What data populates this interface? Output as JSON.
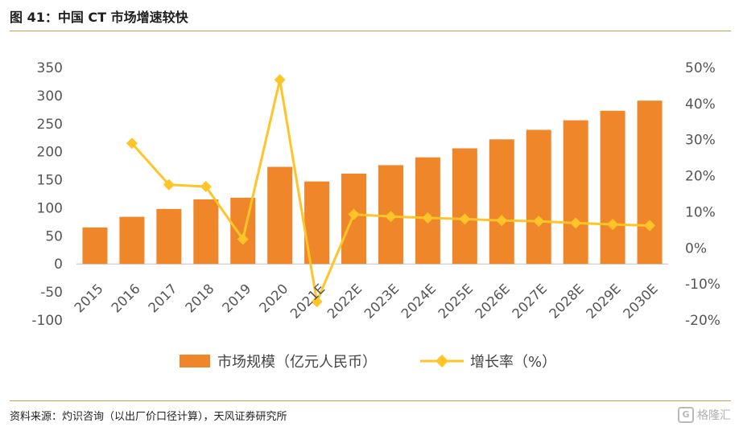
{
  "header": {
    "title": "图 41：中国 CT 市场增速较快"
  },
  "footer": {
    "source": "资料来源：灼识咨询（以出厂价口径计算），天风证券研究所",
    "watermark": "格隆汇"
  },
  "colors": {
    "bar": "#F0862A",
    "line": "#FFC428",
    "rule": "#C7A15A"
  },
  "chart_data": {
    "type": "bar",
    "categories": [
      "2015",
      "2016",
      "2017",
      "2018",
      "2019",
      "2020",
      "2021E",
      "2022E",
      "2023E",
      "2024E",
      "2025E",
      "2026E",
      "2027E",
      "2028E",
      "2029E",
      "2030E"
    ],
    "series": [
      {
        "name": "市场规模（亿元人民币）",
        "type": "bar",
        "axis": "left",
        "values": [
          65,
          84,
          98,
          115,
          118,
          173,
          147,
          161,
          176,
          190,
          206,
          222,
          239,
          256,
          273,
          291
        ]
      },
      {
        "name": "增长率（%）",
        "type": "line",
        "axis": "right",
        "values": [
          null,
          29,
          17.5,
          17,
          2.4,
          46.6,
          -14.9,
          9.3,
          8.7,
          8.3,
          8.0,
          7.6,
          7.4,
          6.9,
          6.5,
          6.2
        ]
      }
    ],
    "y_left": {
      "ylim": [
        -100,
        350
      ],
      "ticks": [
        -100,
        -50,
        0,
        50,
        100,
        150,
        200,
        250,
        300,
        350
      ]
    },
    "y_right": {
      "ylim": [
        -20,
        50
      ],
      "ticks": [
        "-20%",
        "-10%",
        "0%",
        "10%",
        "20%",
        "30%",
        "40%",
        "50%"
      ],
      "tick_values": [
        -20,
        -10,
        0,
        10,
        20,
        30,
        40,
        50
      ]
    },
    "legend": "bottom-center",
    "grid": false
  }
}
